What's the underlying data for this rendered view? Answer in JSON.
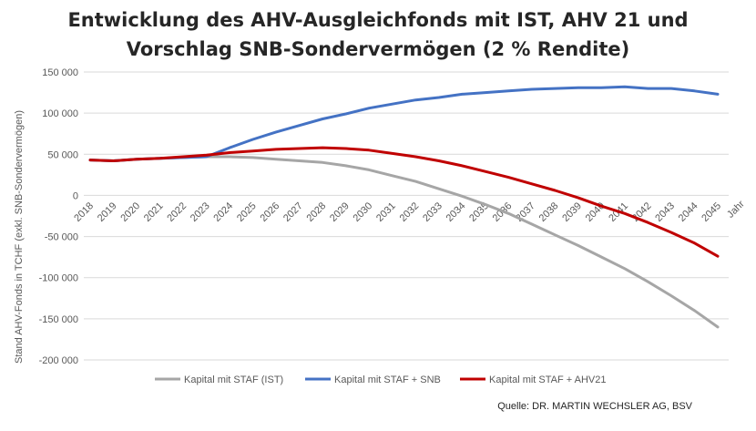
{
  "chart_data": {
    "type": "line",
    "title_line1": "Entwicklung des AHV-Ausgleichfonds mit IST, AHV 21 und",
    "title_line2": "Vorschlag SNB-Sondervermögen (2 % Rendite)",
    "xlabel": "Jahr",
    "ylabel": "Stand AHV-Fonds in TCHF (exkl. SNB-Sondervermögen)",
    "ylim": [
      -200000,
      150000
    ],
    "yticks": [
      150000,
      100000,
      50000,
      0,
      -50000,
      -100000,
      -150000,
      -200000
    ],
    "ytick_labels": [
      "150 000",
      "100 000",
      "50 000",
      "0",
      "-50 000",
      "-100 000",
      "-150 000",
      "-200 000"
    ],
    "grid": "horizontal",
    "legend_position": "bottom",
    "x": [
      "2018",
      "2019",
      "2020",
      "2021",
      "2022",
      "2023",
      "2024",
      "2025",
      "2026",
      "2027",
      "2028",
      "2029",
      "2030",
      "2031",
      "2032",
      "2033",
      "2034",
      "2035",
      "2036",
      "2037",
      "2038",
      "2039",
      "2040",
      "2041",
      "2042",
      "2043",
      "2044",
      "2045"
    ],
    "series": [
      {
        "name": "Kapital mit STAF (IST)",
        "color": "#a6a6a6",
        "values": [
          43000,
          42000,
          44000,
          45000,
          46000,
          47000,
          47000,
          46000,
          44000,
          42000,
          40000,
          36000,
          31000,
          24000,
          17000,
          8000,
          -1000,
          -11000,
          -22000,
          -35000,
          -48000,
          -61000,
          -75000,
          -89000,
          -105000,
          -122000,
          -140000,
          -160000
        ]
      },
      {
        "name": "Kapital mit STAF + SNB",
        "color": "#4472c4",
        "values": [
          43000,
          42000,
          44000,
          45000,
          46000,
          47000,
          58000,
          68000,
          77000,
          85000,
          93000,
          99000,
          106000,
          111000,
          116000,
          119000,
          123000,
          125000,
          127000,
          129000,
          130000,
          131000,
          131000,
          132000,
          130000,
          130000,
          127000,
          123000
        ]
      },
      {
        "name": "Kapital mit STAF + AHV21",
        "color": "#c00000",
        "values": [
          43000,
          42000,
          44000,
          45000,
          47000,
          49000,
          52000,
          54000,
          56000,
          57000,
          58000,
          57000,
          55000,
          51000,
          47000,
          42000,
          36000,
          29000,
          22000,
          14000,
          6000,
          -3000,
          -13000,
          -22000,
          -33000,
          -45000,
          -58000,
          -74000
        ]
      }
    ]
  },
  "source": "Quelle: DR. MARTIN WECHSLER AG, BSV",
  "colors": {
    "grid": "#d9d9d9",
    "axis": "#d9d9d9",
    "text": "#595959"
  }
}
